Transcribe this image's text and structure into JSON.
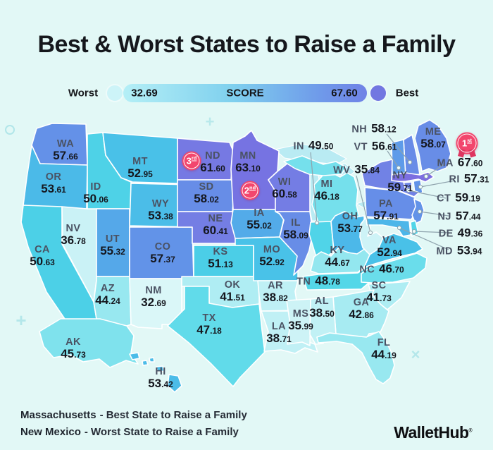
{
  "title": "Best & Worst States to Raise a Family",
  "legend": {
    "worst_label": "Worst",
    "best_label": "Best",
    "min_score": "32.69",
    "max_score": "67.60",
    "bar_label": "SCORE"
  },
  "colors": {
    "background": "#e2f8f6",
    "badge_pink": "#f2466d",
    "lake": "#b9ebf3",
    "state_border": "#ffffff",
    "scale_stops": [
      [
        32.69,
        "#daf7f8"
      ],
      [
        37,
        "#c9f2f6"
      ],
      [
        40,
        "#b9eff4"
      ],
      [
        43,
        "#a6ebf2"
      ],
      [
        45,
        "#8fe6ef"
      ],
      [
        47,
        "#63dbea"
      ],
      [
        49,
        "#52d6e8"
      ],
      [
        51,
        "#4bcfe7"
      ],
      [
        53,
        "#49c1e8"
      ],
      [
        54.5,
        "#4fb0e9"
      ],
      [
        56,
        "#5aa1e9"
      ],
      [
        57.5,
        "#6392e8"
      ],
      [
        58.5,
        "#6b89e7"
      ],
      [
        60,
        "#7380e5"
      ],
      [
        61.5,
        "#7679e3"
      ],
      [
        63.5,
        "#7672e2"
      ],
      [
        67.6,
        "#7c6ee0"
      ]
    ]
  },
  "chart_data": {
    "type": "heatmap",
    "subtype": "us-choropleth-map",
    "title": "Best & Worst States to Raise a Family",
    "value_label": "SCORE",
    "score_range": [
      32.69,
      67.6
    ],
    "states": [
      {
        "code": "WA",
        "score": "57.66"
      },
      {
        "code": "OR",
        "score": "53.61"
      },
      {
        "code": "CA",
        "score": "50.63"
      },
      {
        "code": "NV",
        "score": "36.78"
      },
      {
        "code": "ID",
        "score": "50.06"
      },
      {
        "code": "MT",
        "score": "52.95"
      },
      {
        "code": "WY",
        "score": "53.38"
      },
      {
        "code": "UT",
        "score": "55.32"
      },
      {
        "code": "CO",
        "score": "57.37"
      },
      {
        "code": "AZ",
        "score": "44.24"
      },
      {
        "code": "NM",
        "score": "32.69"
      },
      {
        "code": "ND",
        "score": "61.60"
      },
      {
        "code": "SD",
        "score": "58.02"
      },
      {
        "code": "NE",
        "score": "60.41"
      },
      {
        "code": "KS",
        "score": "51.13"
      },
      {
        "code": "OK",
        "score": "41.51"
      },
      {
        "code": "TX",
        "score": "47.18"
      },
      {
        "code": "MN",
        "score": "63.10"
      },
      {
        "code": "IA",
        "score": "55.02"
      },
      {
        "code": "MO",
        "score": "52.92"
      },
      {
        "code": "AR",
        "score": "38.82"
      },
      {
        "code": "LA",
        "score": "38.71"
      },
      {
        "code": "MS",
        "score": "35.99"
      },
      {
        "code": "WI",
        "score": "60.58"
      },
      {
        "code": "IL",
        "score": "58.09"
      },
      {
        "code": "MI",
        "score": "46.18"
      },
      {
        "code": "IN",
        "score": "49.50"
      },
      {
        "code": "OH",
        "score": "53.77"
      },
      {
        "code": "KY",
        "score": "44.67"
      },
      {
        "code": "TN",
        "score": "48.78"
      },
      {
        "code": "WV",
        "score": "35.84"
      },
      {
        "code": "VA",
        "score": "52.94"
      },
      {
        "code": "NC",
        "score": "46.70"
      },
      {
        "code": "SC",
        "score": "41.73"
      },
      {
        "code": "GA",
        "score": "42.86"
      },
      {
        "code": "AL",
        "score": "38.50"
      },
      {
        "code": "FL",
        "score": "44.19"
      },
      {
        "code": "AK",
        "score": "45.73"
      },
      {
        "code": "HI",
        "score": "53.42"
      },
      {
        "code": "ME",
        "score": "58.07"
      },
      {
        "code": "NH",
        "score": "58.12"
      },
      {
        "code": "VT",
        "score": "56.61"
      },
      {
        "code": "MA",
        "score": "67.60"
      },
      {
        "code": "RI",
        "score": "57.31"
      },
      {
        "code": "CT",
        "score": "59.19"
      },
      {
        "code": "NY",
        "score": "59.71"
      },
      {
        "code": "PA",
        "score": "57.91"
      },
      {
        "code": "NJ",
        "score": "57.44"
      },
      {
        "code": "DE",
        "score": "49.36"
      },
      {
        "code": "MD",
        "score": "53.94"
      }
    ],
    "top_ranks": [
      {
        "rank": "1",
        "suffix": "st",
        "state": "MA"
      },
      {
        "rank": "2",
        "suffix": "nd",
        "state": "MN"
      },
      {
        "rank": "3",
        "suffix": "rd",
        "state": "ND"
      }
    ]
  },
  "footer": {
    "lines": [
      {
        "emph": "Massachusetts",
        "rest": "- Best State to Raise a Family"
      },
      {
        "emph": "New Mexico",
        "rest": "- Worst State to Raise a Family"
      }
    ]
  },
  "brand": {
    "name": "WalletHub",
    "reg_mark": "®"
  }
}
